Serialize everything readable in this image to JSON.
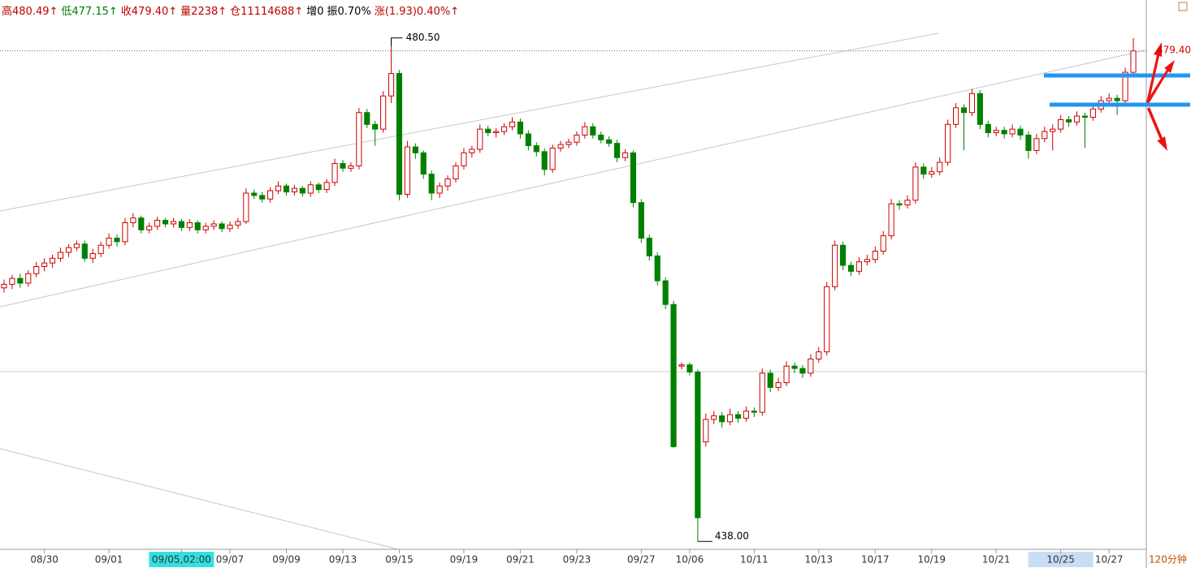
{
  "chart_data": {
    "type": "candlestick",
    "header": [
      {
        "text": "高480.49↑",
        "color": "#c00000"
      },
      {
        "text": "低477.15↑",
        "color": "#008000"
      },
      {
        "text": "收479.40↑",
        "color": "#c00000"
      },
      {
        "text": "量2238↑",
        "color": "#c00000"
      },
      {
        "text": "仓11114688↑",
        "color": "#c00000"
      },
      {
        "text": "增0",
        "color": "#000000"
      },
      {
        "text": "振0.70%",
        "color": "#000000"
      },
      {
        "text": "涨(1.93)0.40%↑",
        "color": "#c00000"
      }
    ],
    "timeframe": "120分钟",
    "last_price_label": "479.40",
    "high_label": "480.50",
    "low_label": "438.00",
    "ylim": [
      437.4,
      483.7
    ],
    "up_color": "#d00000",
    "down_color": "#008000",
    "categories": [
      null,
      null,
      null,
      null,
      null,
      "08/30",
      null,
      null,
      null,
      null,
      null,
      null,
      null,
      "09/01",
      null,
      null,
      null,
      null,
      null,
      null,
      null,
      null,
      "09/05,02:00",
      null,
      null,
      null,
      null,
      null,
      "09/07",
      null,
      null,
      null,
      null,
      null,
      null,
      "09/09",
      null,
      null,
      null,
      null,
      null,
      null,
      "09/13",
      null,
      null,
      null,
      null,
      null,
      null,
      "09/15",
      null,
      null,
      null,
      null,
      null,
      null,
      null,
      "09/19",
      null,
      null,
      null,
      null,
      null,
      null,
      "09/21",
      null,
      null,
      null,
      null,
      null,
      null,
      "09/23",
      null,
      null,
      null,
      null,
      null,
      null,
      null,
      "09/27",
      null,
      null,
      null,
      null,
      null,
      "10/06",
      null,
      null,
      null,
      null,
      null,
      null,
      null,
      "10/11",
      null,
      null,
      null,
      null,
      null,
      null,
      null,
      "10/13",
      null,
      null,
      null,
      null,
      null,
      null,
      "10/17",
      null,
      null,
      null,
      null,
      null,
      null,
      "10/19",
      null,
      null,
      null,
      null,
      null,
      null,
      null,
      "10/21",
      null,
      null,
      null,
      null,
      null,
      null,
      null,
      "10/25",
      null,
      null,
      null,
      null,
      null,
      "10/27",
      null,
      null,
      null
    ],
    "candles": [
      [
        459.4,
        460.1,
        459.0,
        459.7
      ],
      [
        459.7,
        460.5,
        459.3,
        460.2
      ],
      [
        460.2,
        460.6,
        459.4,
        459.8
      ],
      [
        459.8,
        460.9,
        459.5,
        460.6
      ],
      [
        460.6,
        461.6,
        460.3,
        461.2
      ],
      [
        461.2,
        461.9,
        460.8,
        461.5
      ],
      [
        461.5,
        462.2,
        461.1,
        461.9
      ],
      [
        461.9,
        462.8,
        461.6,
        462.4
      ],
      [
        462.4,
        463.1,
        462.0,
        462.8
      ],
      [
        462.8,
        463.4,
        462.5,
        463.1
      ],
      [
        463.1,
        463.4,
        461.6,
        461.9
      ],
      [
        461.9,
        462.7,
        461.5,
        462.3
      ],
      [
        462.3,
        463.3,
        462.0,
        463.0
      ],
      [
        463.0,
        464.0,
        462.7,
        463.6
      ],
      [
        463.6,
        463.9,
        462.9,
        463.3
      ],
      [
        463.3,
        465.3,
        463.0,
        464.9
      ],
      [
        464.9,
        465.7,
        464.5,
        465.3
      ],
      [
        465.3,
        465.5,
        464.0,
        464.3
      ],
      [
        464.3,
        464.9,
        464.0,
        464.6
      ],
      [
        464.6,
        465.4,
        464.3,
        465.1
      ],
      [
        465.1,
        465.3,
        464.5,
        464.8
      ],
      [
        464.8,
        465.3,
        464.5,
        465.0
      ],
      [
        465.0,
        465.2,
        464.2,
        464.5
      ],
      [
        464.5,
        465.2,
        464.2,
        464.9
      ],
      [
        464.9,
        465.1,
        464.0,
        464.3
      ],
      [
        464.3,
        464.9,
        464.0,
        464.6
      ],
      [
        464.6,
        465.1,
        464.3,
        464.8
      ],
      [
        464.8,
        465.0,
        464.1,
        464.4
      ],
      [
        464.4,
        465.0,
        464.1,
        464.7
      ],
      [
        464.7,
        465.3,
        464.4,
        465.0
      ],
      [
        465.0,
        467.8,
        464.8,
        467.4
      ],
      [
        467.4,
        467.7,
        466.9,
        467.2
      ],
      [
        467.2,
        467.5,
        466.6,
        466.9
      ],
      [
        466.9,
        467.9,
        466.6,
        467.6
      ],
      [
        467.6,
        468.4,
        467.3,
        468.0
      ],
      [
        468.0,
        468.2,
        467.2,
        467.5
      ],
      [
        467.5,
        468.1,
        467.2,
        467.8
      ],
      [
        467.8,
        468.0,
        467.1,
        467.4
      ],
      [
        467.4,
        468.4,
        467.1,
        468.1
      ],
      [
        468.1,
        468.3,
        467.4,
        467.7
      ],
      [
        467.7,
        468.6,
        467.4,
        468.3
      ],
      [
        468.3,
        470.3,
        468.0,
        469.9
      ],
      [
        469.9,
        470.2,
        469.2,
        469.5
      ],
      [
        469.5,
        470.0,
        469.2,
        469.7
      ],
      [
        469.7,
        474.6,
        469.4,
        474.2
      ],
      [
        474.2,
        474.5,
        472.9,
        473.2
      ],
      [
        473.2,
        473.5,
        471.4,
        472.8
      ],
      [
        472.8,
        476.0,
        472.5,
        475.6
      ],
      [
        475.6,
        480.5,
        475.0,
        477.5
      ],
      [
        477.5,
        477.8,
        466.8,
        467.3
      ],
      [
        467.3,
        471.8,
        467.0,
        471.3
      ],
      [
        471.3,
        471.6,
        470.3,
        470.8
      ],
      [
        470.8,
        471.0,
        468.6,
        469.0
      ],
      [
        469.0,
        469.3,
        466.8,
        467.4
      ],
      [
        467.4,
        468.3,
        467.0,
        468.0
      ],
      [
        468.0,
        468.9,
        467.6,
        468.6
      ],
      [
        468.6,
        470.0,
        468.3,
        469.7
      ],
      [
        469.7,
        471.2,
        469.4,
        470.8
      ],
      [
        470.8,
        471.4,
        470.4,
        471.1
      ],
      [
        471.1,
        473.2,
        470.8,
        472.8
      ],
      [
        472.8,
        473.1,
        472.2,
        472.5
      ],
      [
        472.5,
        472.9,
        472.1,
        472.6
      ],
      [
        472.6,
        473.3,
        472.3,
        473.0
      ],
      [
        473.0,
        473.8,
        472.7,
        473.4
      ],
      [
        473.4,
        473.7,
        472.0,
        472.4
      ],
      [
        472.4,
        472.7,
        471.0,
        471.4
      ],
      [
        471.4,
        471.7,
        470.5,
        470.9
      ],
      [
        470.9,
        471.2,
        468.9,
        469.4
      ],
      [
        469.4,
        471.5,
        469.1,
        471.2
      ],
      [
        471.2,
        471.8,
        470.9,
        471.5
      ],
      [
        471.5,
        472.0,
        471.2,
        471.7
      ],
      [
        471.7,
        472.6,
        471.4,
        472.3
      ],
      [
        472.3,
        473.4,
        472.0,
        473.0
      ],
      [
        473.0,
        473.3,
        472.0,
        472.3
      ],
      [
        472.3,
        472.6,
        471.6,
        471.9
      ],
      [
        471.9,
        472.2,
        471.3,
        471.6
      ],
      [
        471.6,
        471.9,
        470.0,
        470.4
      ],
      [
        470.4,
        471.1,
        470.1,
        470.8
      ],
      [
        470.8,
        471.0,
        466.2,
        466.6
      ],
      [
        466.6,
        466.9,
        463.2,
        463.6
      ],
      [
        463.6,
        463.9,
        461.7,
        462.1
      ],
      [
        462.1,
        462.4,
        459.6,
        460.0
      ],
      [
        460.0,
        460.3,
        457.6,
        458.0
      ],
      [
        458.0,
        458.3,
        445.9,
        446.0
      ],
      [
        452.8,
        453.1,
        452.5,
        452.9
      ],
      [
        452.9,
        453.1,
        452.0,
        452.3
      ],
      [
        452.3,
        452.5,
        438.0,
        440.0
      ],
      [
        446.4,
        448.8,
        446.0,
        448.3
      ],
      [
        448.3,
        449.0,
        447.9,
        448.6
      ],
      [
        448.6,
        448.9,
        447.6,
        448.1
      ],
      [
        448.1,
        449.2,
        447.8,
        448.7
      ],
      [
        448.7,
        449.0,
        448.0,
        448.4
      ],
      [
        448.4,
        449.4,
        448.1,
        449.0
      ],
      [
        449.0,
        449.3,
        448.5,
        448.9
      ],
      [
        448.9,
        452.6,
        448.6,
        452.2
      ],
      [
        452.2,
        452.5,
        450.6,
        451.0
      ],
      [
        451.0,
        451.8,
        450.7,
        451.4
      ],
      [
        451.4,
        453.2,
        451.1,
        452.8
      ],
      [
        452.8,
        453.1,
        452.2,
        452.6
      ],
      [
        452.6,
        452.9,
        451.8,
        452.2
      ],
      [
        452.2,
        453.8,
        451.9,
        453.4
      ],
      [
        453.4,
        454.4,
        453.1,
        454.0
      ],
      [
        454.0,
        459.9,
        453.7,
        459.5
      ],
      [
        459.5,
        463.4,
        459.2,
        463.0
      ],
      [
        463.0,
        463.3,
        460.9,
        461.3
      ],
      [
        461.3,
        461.6,
        460.4,
        460.8
      ],
      [
        460.8,
        462.0,
        460.5,
        461.6
      ],
      [
        461.6,
        462.2,
        461.3,
        461.8
      ],
      [
        461.8,
        462.9,
        461.5,
        462.5
      ],
      [
        462.5,
        464.2,
        462.2,
        463.8
      ],
      [
        463.8,
        466.9,
        463.5,
        466.5
      ],
      [
        466.5,
        466.8,
        466.0,
        466.4
      ],
      [
        466.4,
        467.2,
        466.1,
        466.8
      ],
      [
        466.8,
        470.0,
        466.5,
        469.6
      ],
      [
        469.6,
        469.9,
        468.6,
        469.0
      ],
      [
        469.0,
        469.6,
        468.7,
        469.2
      ],
      [
        469.2,
        470.4,
        468.9,
        470.0
      ],
      [
        470.0,
        473.6,
        469.7,
        473.2
      ],
      [
        473.2,
        475.0,
        472.9,
        474.6
      ],
      [
        474.6,
        474.9,
        471.0,
        474.2
      ],
      [
        474.2,
        476.2,
        473.9,
        475.8
      ],
      [
        475.8,
        476.1,
        472.8,
        473.2
      ],
      [
        473.2,
        473.5,
        472.1,
        472.5
      ],
      [
        472.5,
        473.0,
        472.2,
        472.7
      ],
      [
        472.7,
        473.0,
        472.0,
        472.4
      ],
      [
        472.4,
        473.2,
        472.1,
        472.8
      ],
      [
        472.8,
        473.1,
        471.9,
        472.3
      ],
      [
        472.3,
        472.6,
        470.3,
        471.0
      ],
      [
        471.0,
        472.4,
        470.7,
        472.0
      ],
      [
        472.0,
        473.0,
        471.7,
        472.6
      ],
      [
        472.6,
        473.2,
        471.0,
        472.8
      ],
      [
        472.8,
        474.0,
        472.5,
        473.6
      ],
      [
        473.6,
        473.9,
        473.0,
        473.4
      ],
      [
        473.4,
        474.3,
        473.1,
        473.9
      ],
      [
        473.9,
        474.2,
        471.2,
        473.8
      ],
      [
        473.8,
        474.9,
        473.5,
        474.5
      ],
      [
        474.5,
        475.6,
        474.2,
        475.2
      ],
      [
        475.2,
        475.8,
        474.9,
        475.4
      ],
      [
        475.4,
        475.7,
        474.0,
        475.2
      ],
      [
        475.2,
        478.0,
        474.9,
        477.6
      ],
      [
        477.6,
        480.49,
        477.15,
        479.4
      ]
    ]
  }
}
